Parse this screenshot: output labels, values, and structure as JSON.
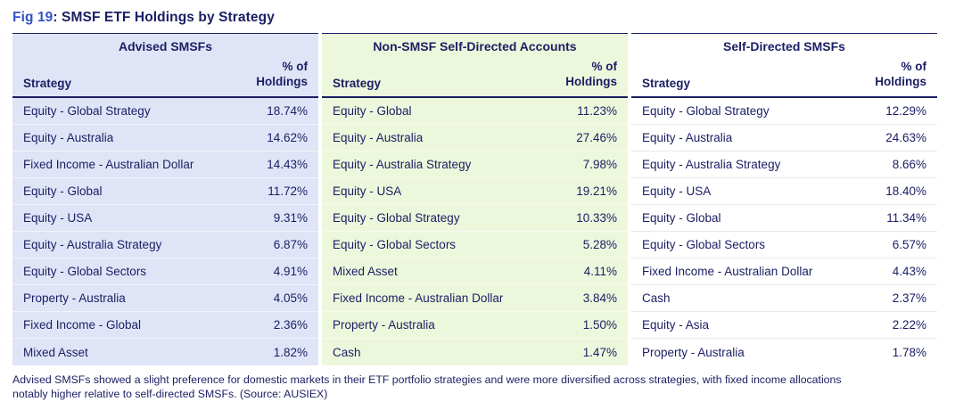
{
  "title": {
    "fig_label": "Fig 19",
    "rest": ": SMSF ETF Holdings by Strategy"
  },
  "colors": {
    "text_navy": "#1b1e63",
    "fig_label_blue": "#3452c9",
    "header_rule": "#1b1e63"
  },
  "caption": "Advised SMSFs showed a slight preference for domestic markets in their ETF portfolio strategies and were more diversified across strategies, with fixed income allocations notably higher relative to self-directed SMSFs. (Source: AUSIEX)",
  "chart_data": {
    "type": "table",
    "title": "SMSF ETF Holdings by Strategy",
    "fig_label": "Fig 19",
    "source": "AUSIEX",
    "sections": [
      {
        "header": "Advised SMSFs",
        "columns": [
          "Strategy",
          "% of Holdings"
        ],
        "bg": "#dfe5f7",
        "separator": "#f1f4fb",
        "rows": [
          [
            "Equity - Global Strategy",
            "18.74%"
          ],
          [
            "Equity - Australia",
            "14.62%"
          ],
          [
            "Fixed Income - Australian Dollar",
            "14.43%"
          ],
          [
            "Equity - Global",
            "11.72%"
          ],
          [
            "Equity - USA",
            "9.31%"
          ],
          [
            "Equity - Australia Strategy",
            "6.87%"
          ],
          [
            "Equity - Global Sectors",
            "4.91%"
          ],
          [
            "Property - Australia",
            "4.05%"
          ],
          [
            "Fixed Income - Global",
            "2.36%"
          ],
          [
            "Mixed Asset",
            "1.82%"
          ]
        ]
      },
      {
        "header": "Non-SMSF Self-Directed Accounts",
        "columns": [
          "Strategy",
          "% of Holdings"
        ],
        "bg": "#edf7dc",
        "separator": "#f7fbec",
        "rows": [
          [
            "Equity - Global",
            "11.23%"
          ],
          [
            "Equity - Australia",
            "27.46%"
          ],
          [
            "Equity - Australia Strategy",
            "7.98%"
          ],
          [
            "Equity - USA",
            "19.21%"
          ],
          [
            "Equity - Global Strategy",
            "10.33%"
          ],
          [
            "Equity - Global Sectors",
            "5.28%"
          ],
          [
            "Mixed Asset",
            "4.11%"
          ],
          [
            "Fixed Income - Australian Dollar",
            "3.84%"
          ],
          [
            "Property - Australia",
            "1.50%"
          ],
          [
            "Cash",
            "1.47%"
          ]
        ]
      },
      {
        "header": "Self-Directed SMSFs",
        "columns": [
          "Strategy",
          "% of Holdings"
        ],
        "bg": "#ffffff",
        "separator": "#e9e9e9",
        "rows": [
          [
            "Equity - Global Strategy",
            "12.29%"
          ],
          [
            "Equity - Australia",
            "24.63%"
          ],
          [
            "Equity - Australia Strategy",
            "8.66%"
          ],
          [
            "Equity - USA",
            "18.40%"
          ],
          [
            "Equity - Global",
            "11.34%"
          ],
          [
            "Equity - Global Sectors",
            "6.57%"
          ],
          [
            "Fixed Income - Australian Dollar",
            "4.43%"
          ],
          [
            "Cash",
            "2.37%"
          ],
          [
            "Equity - Asia",
            "2.22%"
          ],
          [
            "Property - Australia",
            "1.78%"
          ]
        ]
      }
    ]
  }
}
